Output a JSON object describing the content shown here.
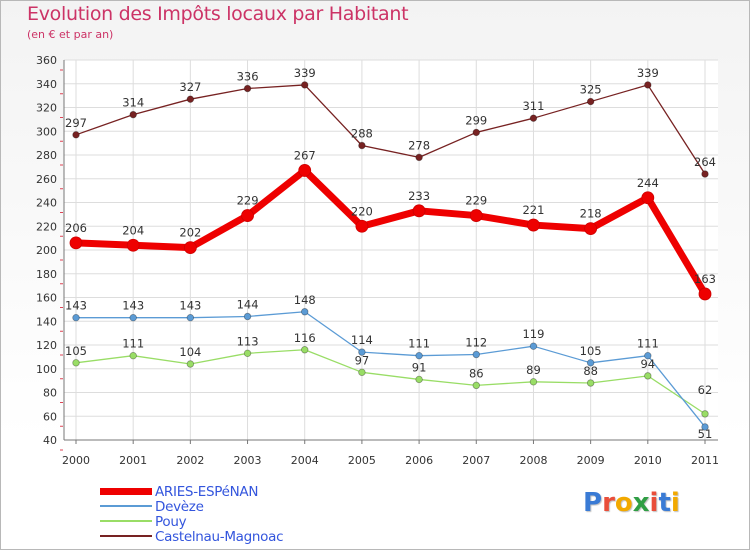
{
  "header": {
    "title": "Evolution des Impôts locaux par Habitant",
    "subtitle": "(en € et par an)"
  },
  "logo": {
    "text": "Proxiti",
    "letter_colors": [
      "#3a7bd5",
      "#e94e3a",
      "#f2a900",
      "#2f9e44",
      "#e94e3a",
      "#3a7bd5",
      "#f2a900"
    ]
  },
  "chart_data": {
    "type": "line",
    "title": "Evolution des Impôts locaux par Habitant",
    "subtitle": "(en € et par an)",
    "xlabel": "",
    "ylabel": "",
    "x": [
      "2000",
      "2001",
      "2002",
      "2003",
      "2004",
      "2005",
      "2006",
      "2007",
      "2008",
      "2009",
      "2010",
      "2011"
    ],
    "ylim": [
      40,
      360
    ],
    "yticks": [
      40,
      60,
      80,
      100,
      120,
      140,
      160,
      180,
      200,
      220,
      240,
      260,
      280,
      300,
      320,
      340,
      360
    ],
    "grid": true,
    "legend_position": "bottom-left",
    "series": [
      {
        "name": "ARIES-ESPéNAN",
        "color": "#ee0000",
        "values": [
          206,
          204,
          202,
          229,
          267,
          220,
          233,
          229,
          221,
          218,
          244,
          163
        ]
      },
      {
        "name": "Devèze",
        "color": "#5b9bd5",
        "values": [
          143,
          143,
          143,
          144,
          148,
          114,
          111,
          112,
          119,
          105,
          111,
          51
        ]
      },
      {
        "name": "Pouy",
        "color": "#99dd66",
        "values": [
          105,
          111,
          104,
          113,
          116,
          97,
          91,
          86,
          89,
          88,
          94,
          62
        ]
      },
      {
        "name": "Castelnau-Magnoac",
        "color": "#772222",
        "values": [
          297,
          314,
          327,
          336,
          339,
          288,
          278,
          299,
          311,
          325,
          339,
          264
        ]
      }
    ]
  }
}
